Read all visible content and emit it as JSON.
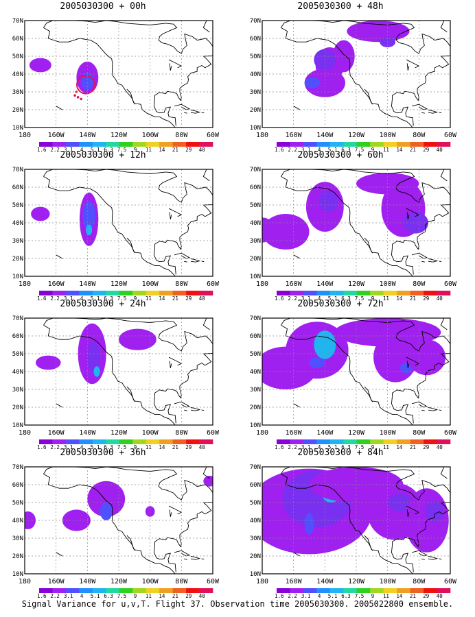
{
  "colorbar": {
    "labels": [
      "1.6",
      "2.2",
      "3.1",
      "4",
      "5.1",
      "6.3",
      "7.5",
      "9",
      "11",
      "14",
      "21",
      "29",
      "40"
    ],
    "colors": [
      "#8a00d8",
      "#a020f0",
      "#5050ff",
      "#2090ff",
      "#20b4f0",
      "#20d8a0",
      "#30d020",
      "#a0d820",
      "#f0d020",
      "#f0a020",
      "#f06020",
      "#f01010",
      "#e0105a"
    ]
  },
  "panels": [
    {
      "title": "2005030300 + 00h"
    },
    {
      "title": "2005030300 + 48h"
    },
    {
      "title": "2005030300 + 12h"
    },
    {
      "title": "2005030300 + 60h"
    },
    {
      "title": "2005030300 + 24h"
    },
    {
      "title": "2005030300 + 72h"
    },
    {
      "title": "2005030300 + 36h"
    },
    {
      "title": "2005030300 + 84h"
    }
  ],
  "axes": {
    "lat_labels": [
      "10N",
      "20N",
      "30N",
      "40N",
      "50N",
      "60N",
      "70N"
    ],
    "lon_labels": [
      "180",
      "160W",
      "140W",
      "120W",
      "100W",
      "80W",
      "60W"
    ]
  },
  "caption": "Signal Variance for u,v,T. Flight 37. Observation time 2005030300. 2005022800 ensemble."
}
